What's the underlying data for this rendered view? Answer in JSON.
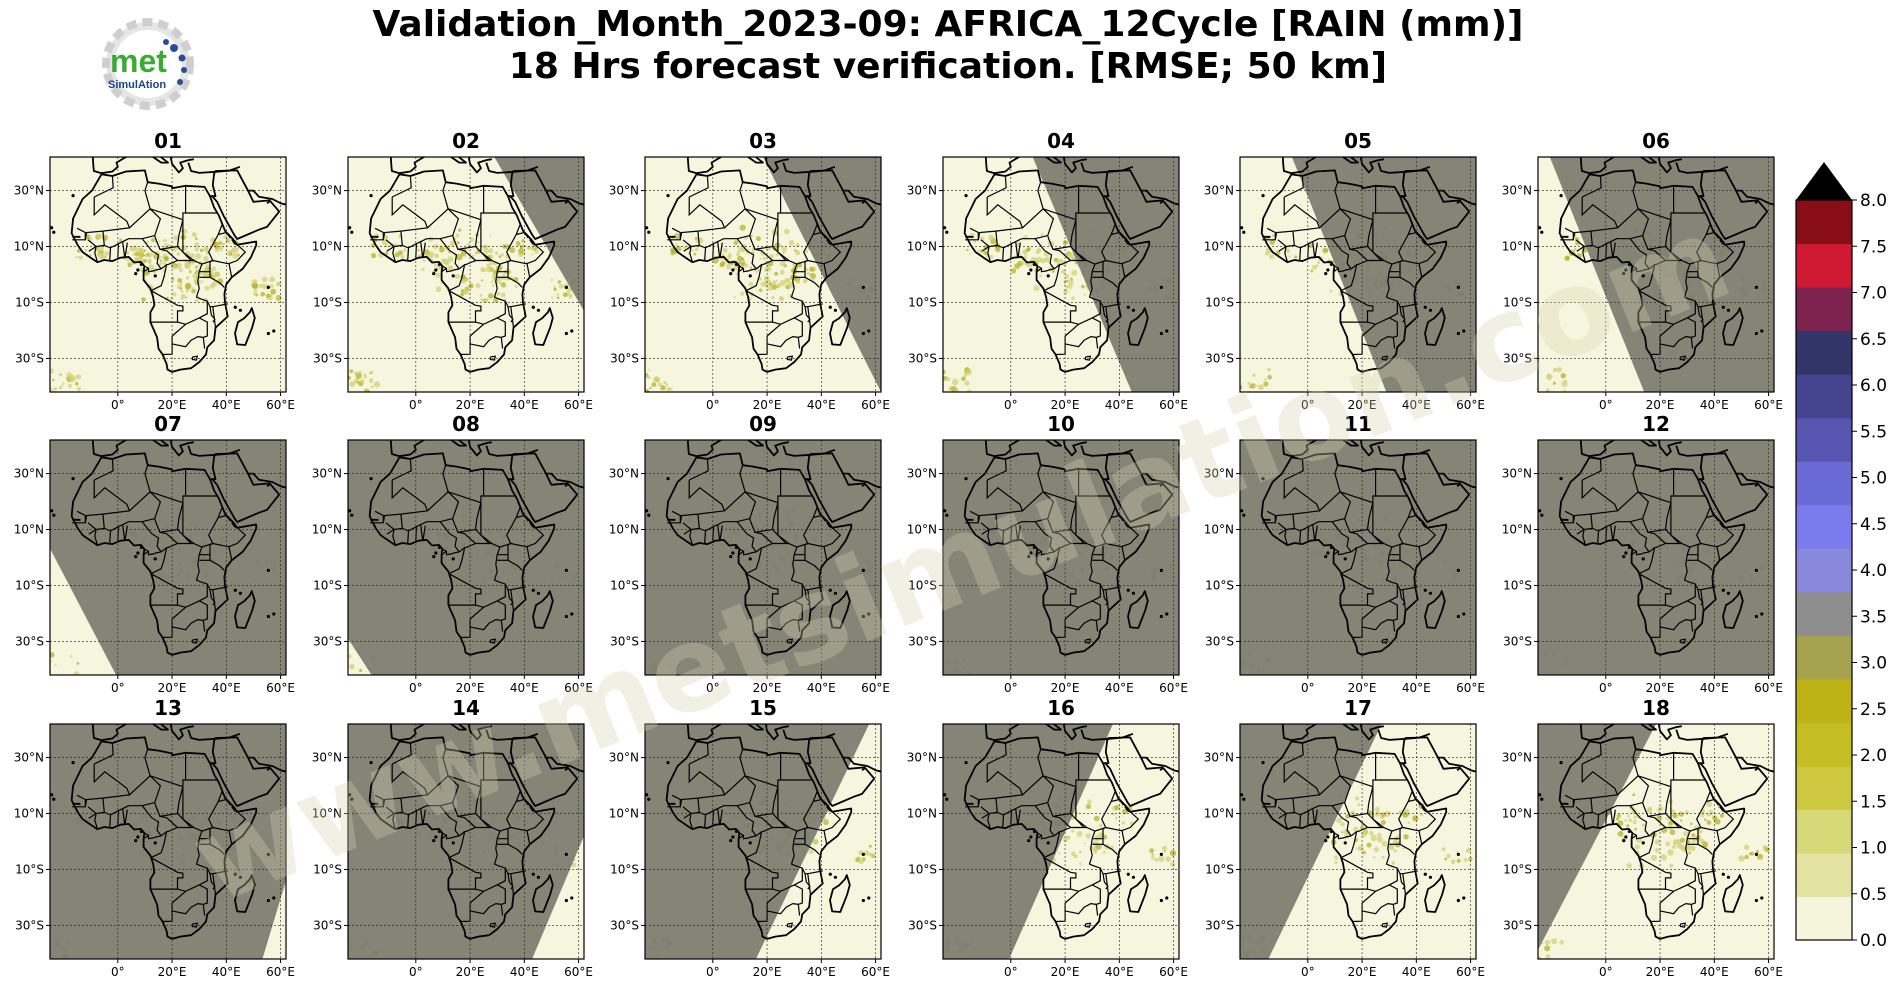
{
  "title": {
    "line1": "Validation_Month_2023-09: AFRICA_12Cycle [RAIN (mm)]",
    "line2": "18 Hrs forecast verification.  [RMSE; 50 km]"
  },
  "logo": {
    "text_top": "met",
    "text_bottom": "SimulAtion",
    "icon": "gear-logo"
  },
  "watermark": "www.metsimulation.com",
  "panels": [
    "01",
    "02",
    "03",
    "04",
    "05",
    "06",
    "07",
    "08",
    "09",
    "10",
    "11",
    "12",
    "13",
    "14",
    "15",
    "16",
    "17",
    "18"
  ],
  "night_shading": [
    {
      "panel": "01",
      "a": 1.2,
      "b": 1.2
    },
    {
      "panel": "02",
      "a": 0.62,
      "b": 1.2
    },
    {
      "panel": "03",
      "a": 0.5,
      "b": 1.0
    },
    {
      "panel": "04",
      "a": 0.38,
      "b": 0.8
    },
    {
      "panel": "05",
      "a": 0.22,
      "b": 0.62
    },
    {
      "panel": "06",
      "a": 0.05,
      "b": 0.45
    },
    {
      "panel": "07",
      "a": -0.15,
      "b": 0.28
    },
    {
      "panel": "08",
      "a": -0.35,
      "b": 0.1
    },
    {
      "panel": "09",
      "a": -1.0,
      "b": -1.0
    },
    {
      "panel": "10",
      "a": -1.0,
      "b": -1.0
    },
    {
      "panel": "11",
      "a": -1.0,
      "b": -1.0
    },
    {
      "panel": "12",
      "a": -1.0,
      "b": -1.0
    },
    {
      "panel": "13",
      "a": 1.2,
      "b": 0.9
    },
    {
      "panel": "14",
      "a": 1.2,
      "b": 0.78
    },
    {
      "panel": "15",
      "a": 0.95,
      "b": 0.47
    },
    {
      "panel": "16",
      "a": 0.72,
      "b": 0.28
    },
    {
      "panel": "17",
      "a": 0.6,
      "b": 0.12
    },
    {
      "panel": "18",
      "a": 0.5,
      "b": -0.02
    }
  ],
  "axes": {
    "lat_labels": [
      "30°N",
      "10°N",
      "10°S",
      "30°S"
    ],
    "lon_labels": [
      "0°",
      "20°E",
      "40°E",
      "60°E"
    ]
  },
  "colorbar": {
    "ticks": [
      "0.0",
      "0.5",
      "1.0",
      "1.5",
      "2.0",
      "2.5",
      "3.0",
      "3.5",
      "4.0",
      "4.5",
      "5.0",
      "5.5",
      "6.0",
      "6.5",
      "7.0",
      "7.5",
      "8.0"
    ],
    "colors": [
      "#f5f5dc",
      "#e2e3a0",
      "#d7d878",
      "#cdc83f",
      "#c5bd24",
      "#bdb316",
      "#a6a350",
      "#8e8e8e",
      "#8888dd",
      "#7b7bee",
      "#6a6ad4",
      "#5656b0",
      "#444490",
      "#323568",
      "#7e2350",
      "#d01a33",
      "#880d16"
    ],
    "extend_color": "#000000"
  },
  "map_colors": {
    "ocean": "#f6f6df",
    "night": "#7b7b6f",
    "border": "#000000",
    "rain": "#c9c63a"
  }
}
